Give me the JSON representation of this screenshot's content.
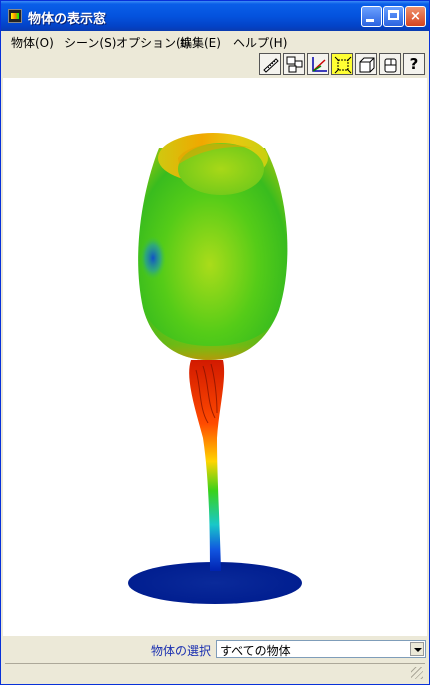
{
  "window": {
    "title": "物体の表示窓"
  },
  "menu": [
    "物体(O)",
    "シーン(S)",
    "オプション(t)",
    "編集(E)",
    "ヘルプ(H)"
  ],
  "toolbar": {
    "tools": [
      {
        "icon": "ruler-icon"
      },
      {
        "icon": "layout-icon"
      },
      {
        "icon": "axes-icon"
      },
      {
        "icon": "fit-icon",
        "active": true
      },
      {
        "icon": "box-icon"
      },
      {
        "icon": "copy-icon"
      },
      {
        "icon": "help-icon",
        "label": "?"
      }
    ]
  },
  "footer": {
    "select_label": "物体の選択",
    "select_value": "すべての物体"
  },
  "colors": {
    "titlebar": "#0453de",
    "active_tool": "#ffff33",
    "label": "#1a2fb0"
  }
}
